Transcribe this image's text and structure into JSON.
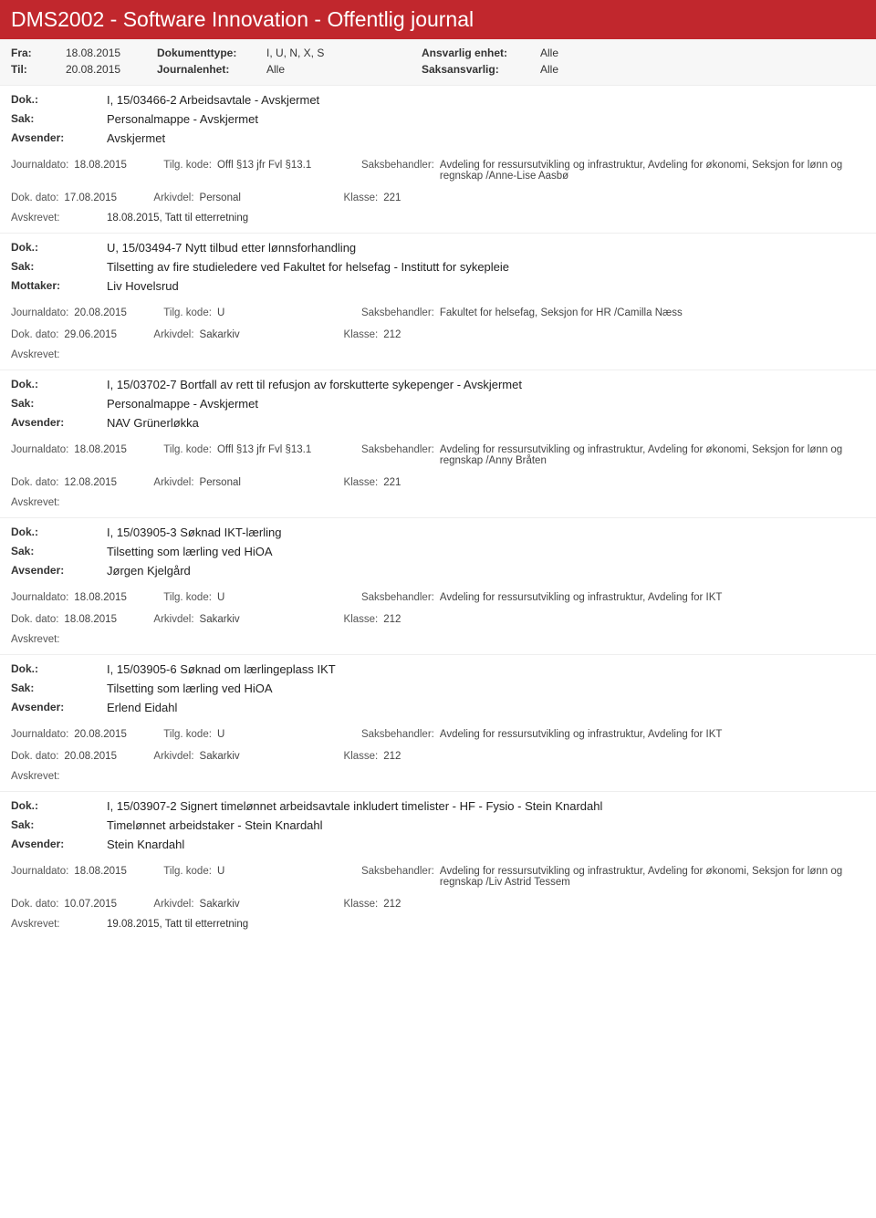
{
  "header": {
    "title": "DMS2002 - Software Innovation - Offentlig journal"
  },
  "filter": {
    "fra_label": "Fra:",
    "fra_value": "18.08.2015",
    "til_label": "Til:",
    "til_value": "20.08.2015",
    "doktype_label": "Dokumenttype:",
    "doktype_value": "I, U, N, X, S",
    "journalenhet_label": "Journalenhet:",
    "journalenhet_value": "Alle",
    "ansvarlig_label": "Ansvarlig enhet:",
    "ansvarlig_value": "Alle",
    "saksansvarlig_label": "Saksansvarlig:",
    "saksansvarlig_value": "Alle"
  },
  "labels": {
    "dok": "Dok.:",
    "sak": "Sak:",
    "avsender": "Avsender:",
    "mottaker": "Mottaker:",
    "journaldato": "Journaldato:",
    "tilgkode": "Tilg. kode:",
    "saksbehandler": "Saksbehandler:",
    "dokdato": "Dok. dato:",
    "arkivdel": "Arkivdel:",
    "klasse": "Klasse:",
    "avskrevet": "Avskrevet:"
  },
  "entries": [
    {
      "dok": "I, 15/03466-2 Arbeidsavtale - Avskjermet",
      "sak": "Personalmappe - Avskjermet",
      "party_label": "Avsender:",
      "party": "Avskjermet",
      "journaldato": "18.08.2015",
      "tilgkode": "Offl §13 jfr Fvl §13.1",
      "saksbehandler": "Avdeling for ressursutvikling og infrastruktur, Avdeling for økonomi, Seksjon for lønn og regnskap /Anne-Lise Aasbø",
      "dokdato": "17.08.2015",
      "arkivdel": "Personal",
      "klasse": "221",
      "avskrevet": "18.08.2015, Tatt til etterretning"
    },
    {
      "dok": "U, 15/03494-7 Nytt tilbud etter lønnsforhandling",
      "sak": "Tilsetting av fire studieledere ved Fakultet for helsefag - Institutt for sykepleie",
      "party_label": "Mottaker:",
      "party": "Liv Hovelsrud",
      "journaldato": "20.08.2015",
      "tilgkode": "U",
      "saksbehandler": "Fakultet for helsefag, Seksjon for HR /Camilla Næss",
      "dokdato": "29.06.2015",
      "arkivdel": "Sakarkiv",
      "klasse": "212",
      "avskrevet": ""
    },
    {
      "dok": "I, 15/03702-7 Bortfall av rett til refusjon av forskutterte sykepenger - Avskjermet",
      "sak": "Personalmappe - Avskjermet",
      "party_label": "Avsender:",
      "party": "NAV Grünerløkka",
      "journaldato": "18.08.2015",
      "tilgkode": "Offl §13 jfr Fvl §13.1",
      "saksbehandler": "Avdeling for ressursutvikling og infrastruktur, Avdeling for økonomi, Seksjon for lønn og regnskap /Anny Bråten",
      "dokdato": "12.08.2015",
      "arkivdel": "Personal",
      "klasse": "221",
      "avskrevet": ""
    },
    {
      "dok": "I, 15/03905-3 Søknad IKT-lærling",
      "sak": "Tilsetting som lærling  ved HiOA",
      "party_label": "Avsender:",
      "party": "Jørgen Kjelgård",
      "journaldato": "18.08.2015",
      "tilgkode": "U",
      "saksbehandler": "Avdeling for ressursutvikling og infrastruktur, Avdeling for IKT",
      "dokdato": "18.08.2015",
      "arkivdel": "Sakarkiv",
      "klasse": "212",
      "avskrevet": ""
    },
    {
      "dok": "I, 15/03905-6 Søknad om lærlingeplass IKT",
      "sak": "Tilsetting som lærling  ved HiOA",
      "party_label": "Avsender:",
      "party": "Erlend Eidahl",
      "journaldato": "20.08.2015",
      "tilgkode": "U",
      "saksbehandler": "Avdeling for ressursutvikling og infrastruktur, Avdeling for IKT",
      "dokdato": "20.08.2015",
      "arkivdel": "Sakarkiv",
      "klasse": "212",
      "avskrevet": ""
    },
    {
      "dok": "I, 15/03907-2 Signert timelønnet arbeidsavtale inkludert timelister - HF - Fysio - Stein Knardahl",
      "sak": "Timelønnet arbeidstaker - Stein Knardahl",
      "party_label": "Avsender:",
      "party": "Stein Knardahl",
      "journaldato": "18.08.2015",
      "tilgkode": "U",
      "saksbehandler": "Avdeling for ressursutvikling og infrastruktur, Avdeling for økonomi, Seksjon for lønn og regnskap /Liv Astrid Tessem",
      "dokdato": "10.07.2015",
      "arkivdel": "Sakarkiv",
      "klasse": "212",
      "avskrevet": "19.08.2015, Tatt til etterretning"
    }
  ]
}
